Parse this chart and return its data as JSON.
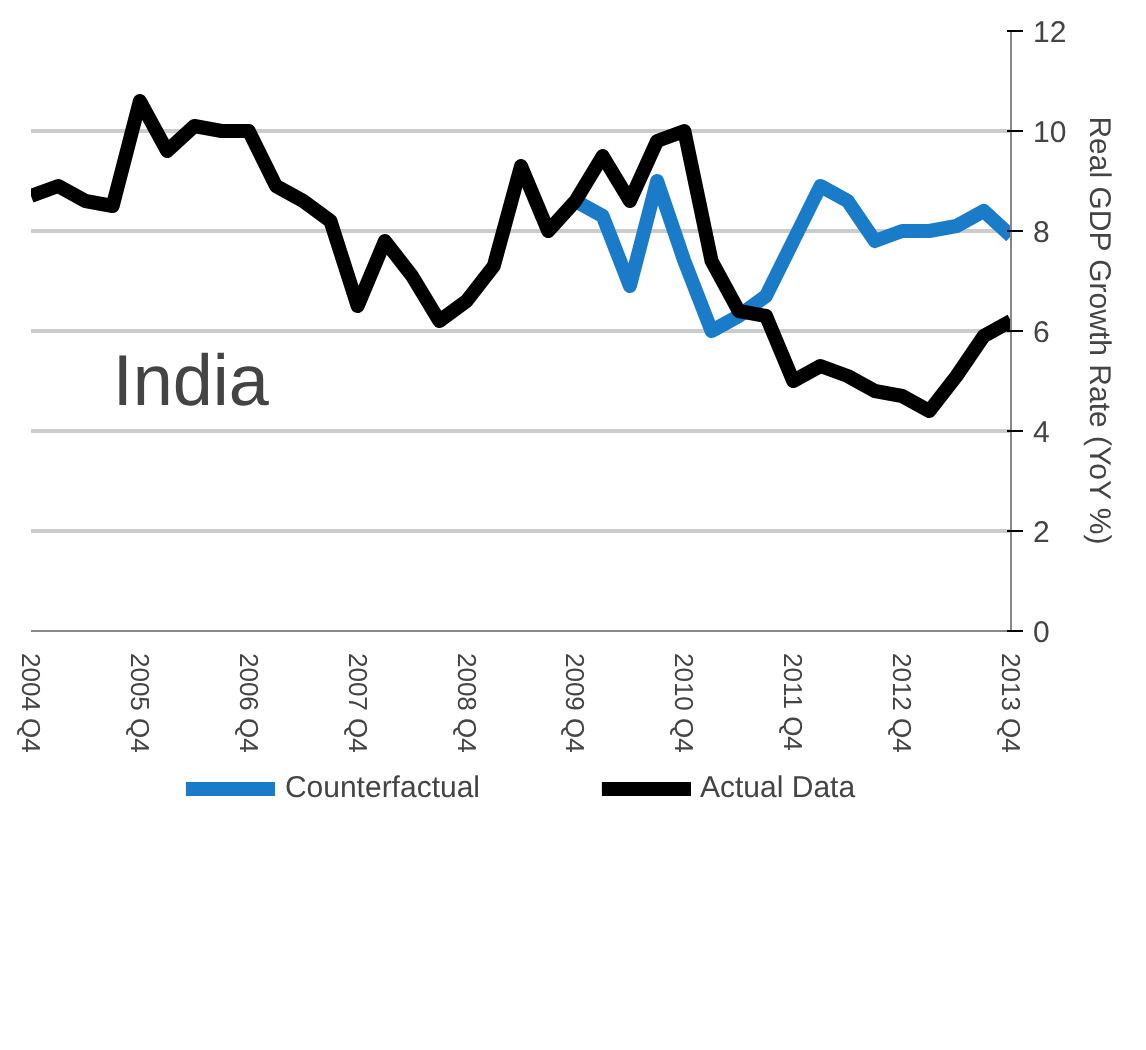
{
  "chart_data": {
    "type": "line",
    "categories": [
      "2004 Q4",
      null,
      null,
      null,
      "2005 Q4",
      null,
      null,
      null,
      "2006 Q4",
      null,
      null,
      null,
      "2007 Q4",
      null,
      null,
      null,
      "2008 Q4",
      null,
      null,
      null,
      "2009 Q4",
      null,
      null,
      null,
      "2010 Q4",
      null,
      null,
      null,
      "2011 Q4",
      null,
      null,
      null,
      "2012 Q4",
      null,
      null,
      null,
      "2013 Q4"
    ],
    "series": [
      {
        "name": "Counterfactual",
        "color": "#1a7bc9",
        "values": [
          null,
          null,
          null,
          null,
          null,
          null,
          null,
          null,
          null,
          null,
          null,
          null,
          null,
          null,
          null,
          null,
          null,
          null,
          null,
          null,
          8.6,
          8.3,
          6.9,
          9.0,
          7.4,
          6.0,
          6.3,
          6.7,
          7.8,
          8.9,
          8.6,
          7.8,
          8.0,
          8.0,
          8.1,
          8.4,
          7.9
        ]
      },
      {
        "name": "Actual Data",
        "color": "#000000",
        "values": [
          8.7,
          8.9,
          8.6,
          8.5,
          10.6,
          9.6,
          10.1,
          10.0,
          10.0,
          8.9,
          8.6,
          8.2,
          6.5,
          7.8,
          7.1,
          6.2,
          6.6,
          7.3,
          9.3,
          8.0,
          8.6,
          9.5,
          8.6,
          9.8,
          10.0,
          7.4,
          6.4,
          6.3,
          5.0,
          5.3,
          5.1,
          4.8,
          4.7,
          4.4,
          5.1,
          5.9,
          6.2
        ]
      }
    ],
    "ylim": [
      0,
      12
    ],
    "yticks": [
      0,
      2,
      4,
      6,
      8,
      10,
      12
    ],
    "ylabel": "Real GDP Growth Rate (YoY %)",
    "annotations": [
      "India"
    ],
    "grid": "y",
    "legend": "bottom",
    "line_style": "solid",
    "marker": "none"
  }
}
